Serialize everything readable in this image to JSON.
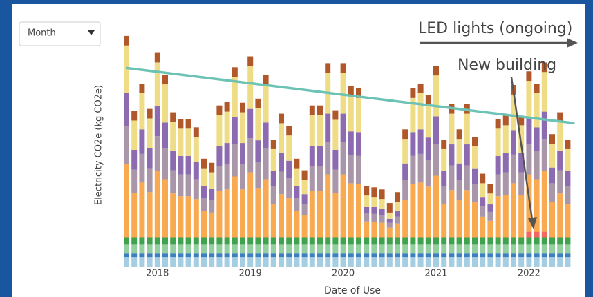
{
  "dropdown": "Month",
  "chart_data": {
    "type": "bar",
    "stacked": true,
    "y_label": "Electricity CO2e (kg CO2e)",
    "x_label": "Date of Use",
    "annotations": [
      "LED lights (ongoing)",
      "New building"
    ],
    "categories": [
      null,
      null,
      null,
      null,
      "2018",
      null,
      null,
      null,
      null,
      null,
      null,
      null,
      null,
      null,
      null,
      null,
      "2019",
      null,
      null,
      null,
      null,
      null,
      null,
      null,
      null,
      null,
      null,
      null,
      "2020",
      null,
      null,
      null,
      null,
      null,
      null,
      null,
      null,
      null,
      null,
      null,
      "2021",
      null,
      null,
      null,
      null,
      null,
      null,
      null,
      null,
      null,
      null,
      null,
      "2022",
      null,
      null,
      null,
      null,
      null
    ],
    "ylim": [
      0,
      350
    ],
    "series": [
      {
        "color": "#a6cee3",
        "values": [
          14,
          14,
          14,
          14,
          14,
          14,
          14,
          14,
          14,
          14,
          14,
          14,
          14,
          14,
          14,
          14,
          14,
          14,
          14,
          14,
          14,
          14,
          14,
          14,
          14,
          14,
          14,
          14,
          14,
          14,
          14,
          14,
          14,
          14,
          14,
          14,
          14,
          14,
          14,
          14,
          14,
          14,
          14,
          14,
          14,
          14,
          14,
          14,
          14,
          14,
          14,
          14,
          14,
          14,
          14,
          14,
          14,
          14
        ]
      },
      {
        "color": "#3a7fc0",
        "values": [
          5,
          5,
          5,
          5,
          5,
          5,
          5,
          5,
          5,
          5,
          5,
          5,
          5,
          5,
          5,
          5,
          5,
          5,
          5,
          5,
          5,
          5,
          5,
          5,
          5,
          5,
          5,
          5,
          5,
          5,
          5,
          5,
          5,
          5,
          5,
          5,
          5,
          5,
          5,
          5,
          5,
          5,
          5,
          5,
          5,
          5,
          5,
          5,
          5,
          5,
          5,
          5,
          5,
          5,
          5,
          5,
          5,
          5
        ]
      },
      {
        "color": "#94cfa0",
        "values": [
          14,
          14,
          14,
          14,
          14,
          14,
          14,
          14,
          14,
          14,
          14,
          14,
          14,
          14,
          14,
          14,
          14,
          14,
          14,
          14,
          14,
          14,
          14,
          14,
          14,
          14,
          14,
          14,
          14,
          14,
          14,
          14,
          14,
          14,
          14,
          14,
          14,
          14,
          14,
          14,
          14,
          14,
          14,
          14,
          14,
          14,
          14,
          14,
          14,
          14,
          14,
          14,
          14,
          14,
          14,
          14,
          14,
          14
        ]
      },
      {
        "color": "#3fa34d",
        "values": [
          10,
          10,
          10,
          10,
          10,
          10,
          10,
          10,
          10,
          10,
          10,
          10,
          10,
          10,
          10,
          10,
          10,
          10,
          10,
          10,
          10,
          10,
          10,
          10,
          10,
          10,
          10,
          10,
          10,
          10,
          10,
          10,
          10,
          10,
          10,
          10,
          10,
          10,
          10,
          10,
          10,
          10,
          10,
          10,
          10,
          10,
          10,
          10,
          10,
          10,
          10,
          10,
          10,
          10,
          10,
          10,
          10,
          10
        ]
      },
      {
        "color": "#f0685f",
        "values": [
          0,
          0,
          0,
          0,
          0,
          0,
          0,
          0,
          0,
          0,
          0,
          0,
          0,
          0,
          0,
          0,
          0,
          0,
          0,
          0,
          0,
          0,
          0,
          0,
          0,
          0,
          0,
          0,
          0,
          0,
          0,
          0,
          0,
          0,
          0,
          0,
          0,
          0,
          0,
          0,
          0,
          0,
          0,
          0,
          0,
          0,
          0,
          0,
          0,
          0,
          0,
          0,
          8,
          8,
          8,
          0,
          0,
          0
        ]
      },
      {
        "color": "#f9a94f",
        "values": [
          107,
          65,
          80,
          66,
          97,
          85,
          64,
          60,
          60,
          56,
          38,
          36,
          68,
          70,
          89,
          70,
          95,
          72,
          85,
          49,
          63,
          57,
          38,
          32,
          68,
          68,
          92,
          65,
          92,
          79,
          78,
          23,
          22,
          21,
          14,
          20,
          55,
          78,
          80,
          74,
          90,
          49,
          69,
          55,
          69,
          51,
          30,
          24,
          60,
          62,
          79,
          62,
          84,
          77,
          89,
          52,
          64,
          49
        ]
      },
      {
        "color": "#a996a8",
        "values": [
          56,
          34,
          42,
          35,
          51,
          45,
          34,
          32,
          32,
          29,
          20,
          19,
          36,
          37,
          47,
          37,
          50,
          38,
          45,
          26,
          33,
          30,
          20,
          17,
          36,
          36,
          48,
          34,
          48,
          41,
          41,
          12,
          12,
          11,
          7,
          10,
          29,
          41,
          42,
          39,
          47,
          26,
          36,
          29,
          36,
          27,
          16,
          13,
          32,
          33,
          42,
          33,
          44,
          41,
          47,
          27,
          34,
          26
        ]
      },
      {
        "color": "#8c6bb1",
        "values": [
          48,
          29,
          36,
          30,
          44,
          38,
          29,
          27,
          27,
          25,
          17,
          16,
          30,
          31,
          40,
          31,
          43,
          32,
          38,
          22,
          28,
          25,
          17,
          14,
          30,
          30,
          41,
          29,
          41,
          35,
          35,
          10,
          10,
          10,
          6,
          9,
          24,
          35,
          36,
          33,
          40,
          22,
          31,
          24,
          31,
          23,
          13,
          11,
          27,
          28,
          36,
          28,
          38,
          35,
          40,
          23,
          29,
          22
        ]
      },
      {
        "color": "#efdc86",
        "values": [
          70,
          43,
          53,
          43,
          64,
          56,
          42,
          40,
          40,
          37,
          26,
          24,
          45,
          46,
          59,
          45,
          63,
          47,
          56,
          32,
          43,
          37,
          26,
          21,
          45,
          45,
          60,
          44,
          60,
          52,
          50,
          16,
          15,
          14,
          9,
          13,
          36,
          50,
          53,
          48,
          60,
          32,
          45,
          36,
          45,
          32,
          20,
          16,
          40,
          41,
          52,
          41,
          55,
          50,
          58,
          35,
          42,
          32
        ]
      },
      {
        "color": "#b1582a",
        "values": [
          14,
          14,
          14,
          14,
          14,
          14,
          14,
          14,
          14,
          14,
          14,
          14,
          14,
          14,
          14,
          14,
          14,
          14,
          14,
          14,
          14,
          14,
          14,
          14,
          14,
          14,
          14,
          14,
          14,
          14,
          14,
          14,
          14,
          14,
          14,
          14,
          14,
          14,
          14,
          14,
          14,
          14,
          14,
          14,
          14,
          14,
          14,
          14,
          14,
          14,
          14,
          14,
          14,
          14,
          14,
          14,
          14,
          14
        ]
      }
    ],
    "trend_line": {
      "color": "#6cc3b5",
      "values": [
        291,
        210
      ]
    }
  }
}
